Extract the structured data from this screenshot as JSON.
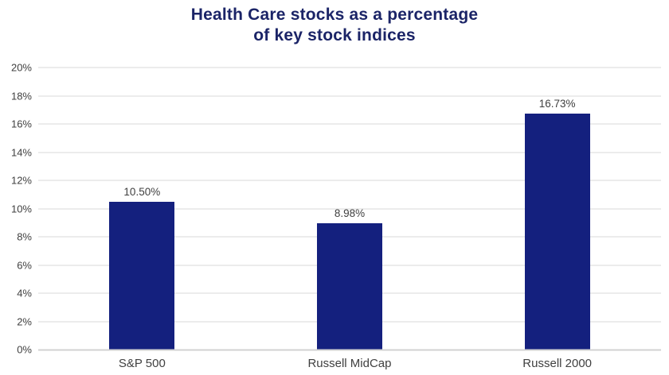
{
  "chart_data": {
    "type": "bar",
    "title": "Health Care stocks as a percentage of key stock indices",
    "title_lines": [
      "Health Care stocks as a percentage",
      "of key stock indices"
    ],
    "categories": [
      "S&P 500",
      "Russell MidCap",
      "Russell 2000"
    ],
    "values": [
      10.5,
      8.98,
      16.73
    ],
    "value_labels": [
      "10.50%",
      "8.98%",
      "16.73%"
    ],
    "xlabel": "",
    "ylabel": "",
    "ylim": [
      0,
      20
    ],
    "ytick_step": 2,
    "ytick_suffix": "%",
    "grid": "horizontal-gridlines-on",
    "legend": "none",
    "colors": {
      "bar": "#14207E",
      "title": "#1B2467",
      "axis_text": "#404040",
      "value_label_text": "#3F3F3F",
      "gridline": "#D9D9D9",
      "baseline": "#D2D2D2",
      "background": "#FFFFFF"
    }
  }
}
